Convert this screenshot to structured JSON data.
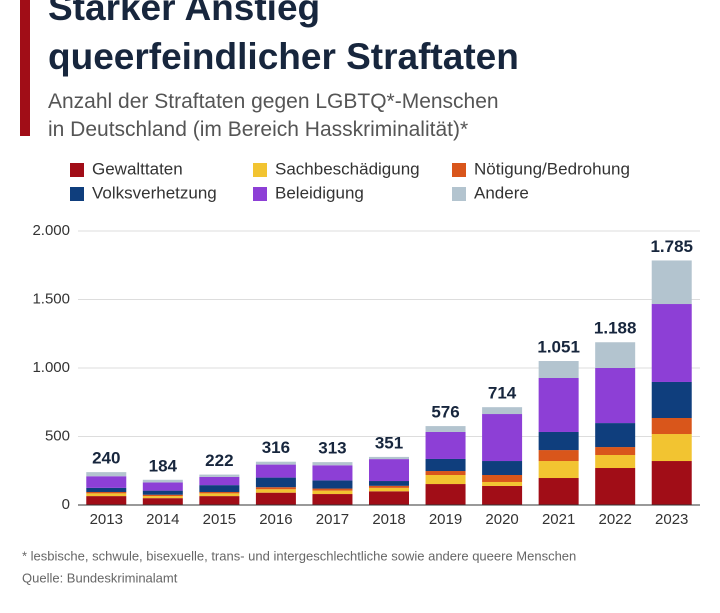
{
  "chart_data": {
    "type": "stacked_bar",
    "title": [
      "Starker Anstieg",
      "queerfeindlicher Straftaten"
    ],
    "subtitle": [
      "Anzahl der Straftaten gegen LGBTQ*-Menschen",
      "in Deutschland (im Bereich Hasskriminalität)*"
    ],
    "categories": [
      "2013",
      "2014",
      "2015",
      "2016",
      "2017",
      "2018",
      "2019",
      "2020",
      "2021",
      "2022",
      "2023"
    ],
    "series": [
      {
        "name": "Gewalttaten",
        "color": "#a10d17",
        "values": [
          65,
          50,
          65,
          90,
          80,
          100,
          153,
          139,
          197,
          270,
          321
        ]
      },
      {
        "name": "Sachbeschädigung",
        "color": "#f2c431",
        "values": [
          20,
          15,
          20,
          25,
          25,
          25,
          66,
          29,
          124,
          95,
          197
        ]
      },
      {
        "name": "Nötigung/Bedrohung",
        "color": "#d9561b",
        "values": [
          10,
          10,
          10,
          15,
          15,
          15,
          29,
          51,
          80,
          58,
          117
        ]
      },
      {
        "name": "Volksverhetzung",
        "color": "#0f3e7d",
        "values": [
          30,
          30,
          50,
          70,
          60,
          35,
          88,
          102,
          132,
          175,
          263
        ]
      },
      {
        "name": "Beleidigung",
        "color": "#8d3fd6",
        "values": [
          85,
          60,
          60,
          95,
          110,
          160,
          197,
          343,
          394,
          402,
          569
        ]
      },
      {
        "name": "Andere",
        "color": "#b3c4cf",
        "values": [
          30,
          19,
          17,
          21,
          23,
          16,
          43,
          50,
          124,
          188,
          318
        ]
      }
    ],
    "totals": {
      "values": [
        240,
        184,
        222,
        316,
        313,
        351,
        576,
        714,
        1051,
        1188,
        1785
      ],
      "value_labels": [
        "240",
        "184",
        "222",
        "316",
        "313",
        "351",
        "576",
        "714",
        "1.051",
        "1.188",
        "1.785"
      ]
    },
    "ylim": [
      0,
      2000
    ],
    "yticks": [
      0,
      500,
      {
        "value": 1000,
        "label": "1.000"
      },
      {
        "value": 1500,
        "label": "1.500"
      },
      {
        "value": 2000,
        "label": "2.000"
      }
    ],
    "grid": true,
    "footnote": "* lesbische, schwule, bisexuelle, trans- und intergeschlechtliche sowie andere queere Menschen",
    "source": "Quelle: Bundeskriminalamt"
  }
}
